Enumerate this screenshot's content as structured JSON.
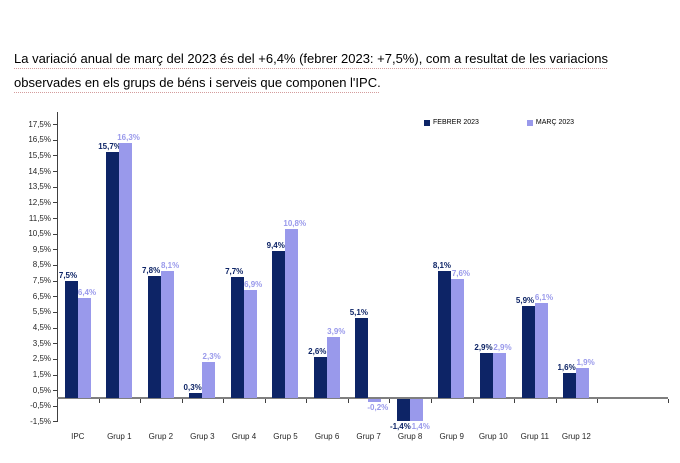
{
  "intro": {
    "line1": "La variació anual de març del 2023 és del +6,4% (febrer 2023: +7,5%), com a resultat de les variacions",
    "line2": "observades en els grups de béns i serveis que componen l'IPC."
  },
  "colors": {
    "febrer": "#0d2466",
    "marc": "#9999eb",
    "axis": "#404040",
    "baseline": "#7f7f7f",
    "underline": "#d49c9c"
  },
  "chart_data": {
    "type": "bar",
    "title": "",
    "xlabel": "",
    "ylabel": "",
    "categories": [
      "IPC",
      "Grup 1",
      "Grup 2",
      "Grup 3",
      "Grup 4",
      "Grup 5",
      "Grup 6",
      "Grup 7",
      "Grup 8",
      "Grup 9",
      "Grup 10",
      "Grup 11",
      "Grup 12"
    ],
    "series": [
      {
        "name": "FEBRER 2023",
        "color": "#0d2466",
        "values": [
          7.5,
          15.7,
          7.8,
          0.3,
          7.7,
          9.4,
          2.6,
          5.1,
          -1.4,
          8.1,
          2.9,
          5.9,
          1.6
        ],
        "labels": [
          "7,5%",
          "15,7%",
          "7,8%",
          "0,3%",
          "7,7%",
          "9,4%",
          "2,6%",
          "5,1%",
          "-1,4%",
          "8,1%",
          "2,9%",
          "5,9%",
          "1,6%"
        ]
      },
      {
        "name": "MARÇ 2023",
        "color": "#9999eb",
        "values": [
          6.4,
          16.3,
          8.1,
          2.3,
          6.9,
          10.8,
          3.9,
          -0.2,
          -1.4,
          7.6,
          2.9,
          6.1,
          1.9
        ],
        "labels": [
          "6,4%",
          "16,3%",
          "8,1%",
          "2,3%",
          "6,9%",
          "10,8%",
          "3,9%",
          "-0,2%",
          "-1,4%",
          "7,6%",
          "2,9%",
          "6,1%",
          "1,9%"
        ]
      }
    ],
    "ylim": [
      -1.5,
      17.5
    ],
    "ytick_step": 1,
    "yticks": [
      "17,5%",
      "16,5%",
      "15,5%",
      "14,5%",
      "13,5%",
      "12,5%",
      "11,5%",
      "10,5%",
      "9,5%",
      "8,5%",
      "7,5%",
      "6,5%",
      "5,5%",
      "4,5%",
      "3,5%",
      "2,5%",
      "1,5%",
      "0,5%",
      "-0,5%",
      "-1,5%"
    ],
    "grid": "off",
    "legend_position": "top-right"
  }
}
